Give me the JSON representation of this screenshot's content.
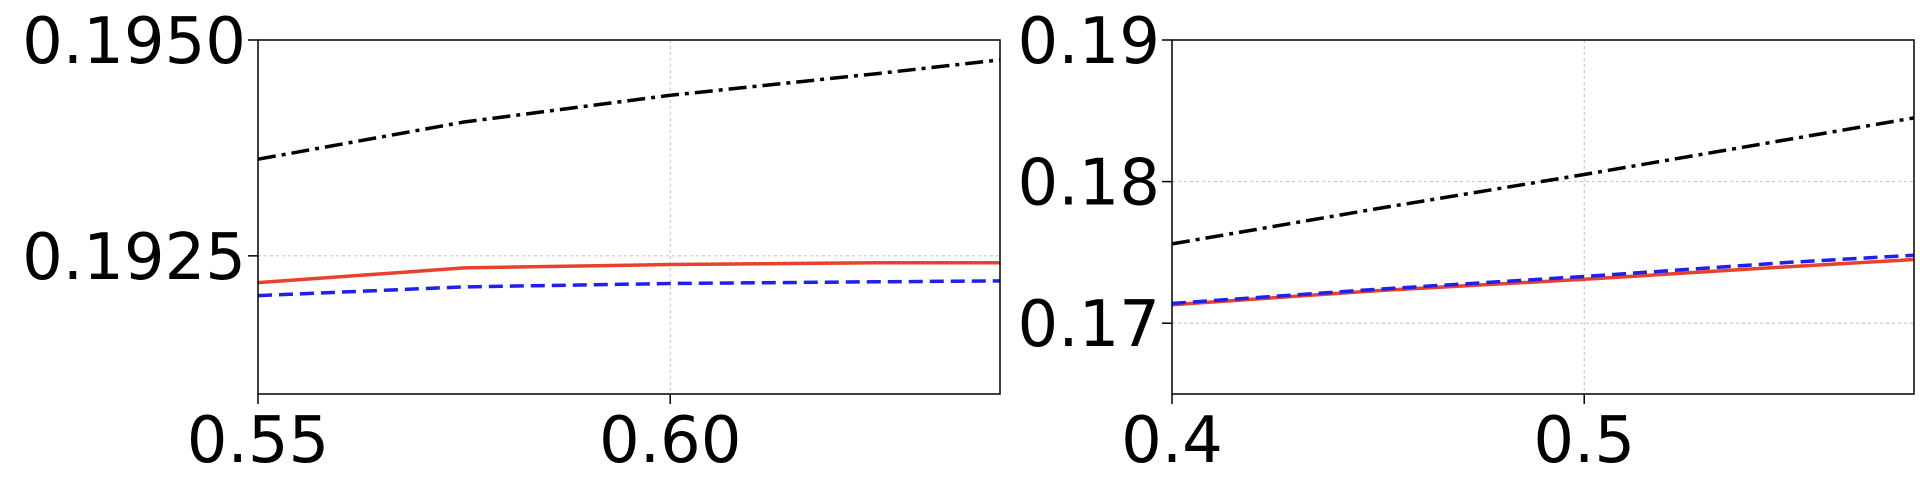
{
  "chart_data": [
    {
      "type": "line",
      "title": "",
      "xlabel": "",
      "ylabel": "",
      "xlim": [
        0.55,
        0.64
      ],
      "ylim": [
        0.1909,
        0.195
      ],
      "xticks": [
        0.55,
        0.6
      ],
      "xtick_labels": [
        "0.55",
        "0.60"
      ],
      "yticks": [
        0.1925,
        0.195
      ],
      "ytick_labels": [
        "0.1925",
        "0.1950"
      ],
      "grid": true,
      "series": [
        {
          "color": "#e8412c",
          "linestyle": "solid",
          "x": [
            0.55,
            0.575,
            0.6,
            0.625,
            0.64
          ],
          "y": [
            0.19219,
            0.19236,
            0.1924,
            0.19242,
            0.19242
          ]
        },
        {
          "color": "#1f1fee",
          "linestyle": "dashed",
          "x": [
            0.55,
            0.575,
            0.6,
            0.625,
            0.64
          ],
          "y": [
            0.19204,
            0.19214,
            0.19218,
            0.1922,
            0.19221
          ]
        },
        {
          "color": "#000000",
          "linestyle": "dashdot",
          "x": [
            0.55,
            0.575,
            0.6,
            0.625,
            0.64
          ],
          "y": [
            0.19362,
            0.19405,
            0.19436,
            0.19461,
            0.19477
          ]
        }
      ]
    },
    {
      "type": "line",
      "title": "",
      "xlabel": "",
      "ylabel": "",
      "xlim": [
        0.4,
        0.58
      ],
      "ylim": [
        0.165,
        0.19
      ],
      "xticks": [
        0.4,
        0.5
      ],
      "xtick_labels": [
        "0.4",
        "0.5"
      ],
      "yticks": [
        0.17,
        0.18,
        0.19
      ],
      "ytick_labels": [
        "0.17",
        "0.18",
        "0.19"
      ],
      "grid": true,
      "series": [
        {
          "color": "#e8412c",
          "linestyle": "solid",
          "x": [
            0.4,
            0.45,
            0.5,
            0.55,
            0.58
          ],
          "y": [
            0.1713,
            0.1723,
            0.1731,
            0.174,
            0.1745
          ]
        },
        {
          "color": "#1f1fee",
          "linestyle": "dashed",
          "x": [
            0.4,
            0.45,
            0.5,
            0.55,
            0.58
          ],
          "y": [
            0.1714,
            0.1724,
            0.1733,
            0.1743,
            0.1748
          ]
        },
        {
          "color": "#000000",
          "linestyle": "dashdot",
          "x": [
            0.4,
            0.45,
            0.5,
            0.55,
            0.58
          ],
          "y": [
            0.1756,
            0.1781,
            0.1805,
            0.183,
            0.1845
          ]
        }
      ]
    }
  ]
}
